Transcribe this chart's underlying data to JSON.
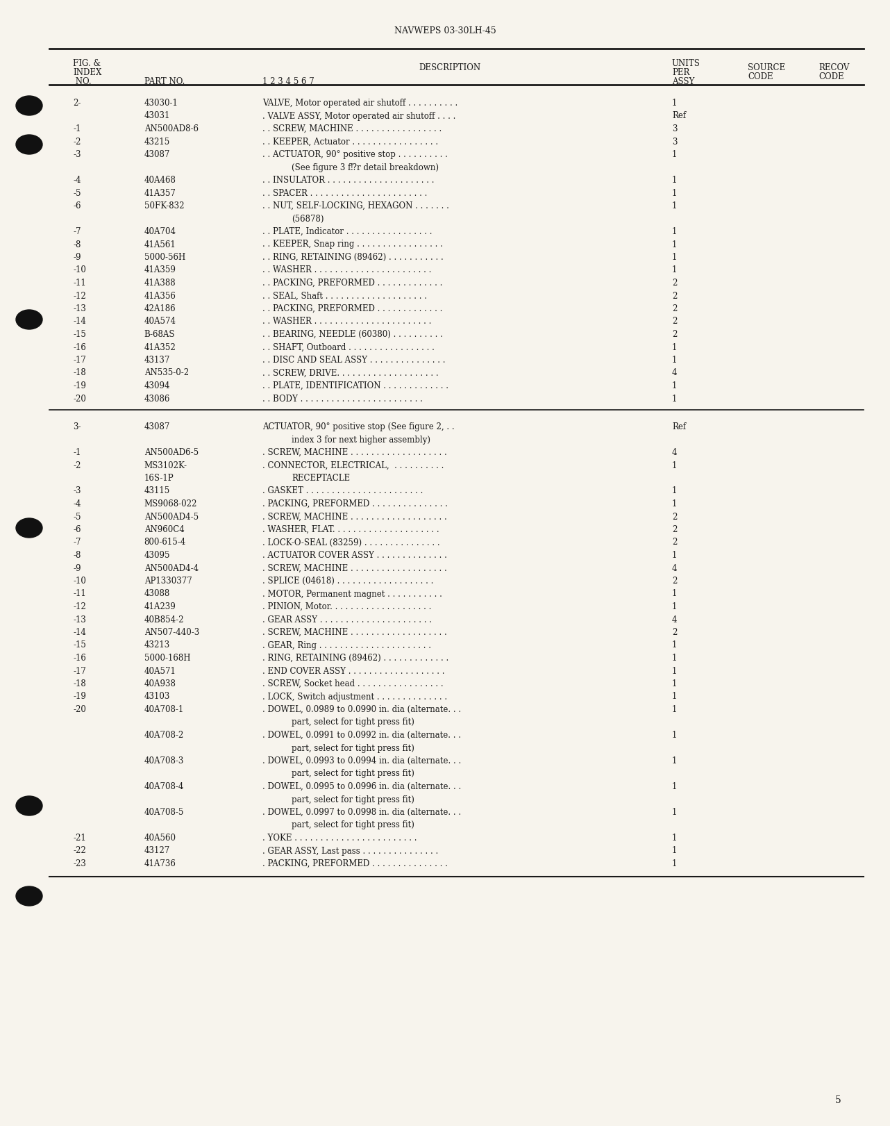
{
  "header_title": "NAVWEPS 03-30LH-45",
  "bg_color": "#f7f4ed",
  "text_color": "#1a1a1a",
  "page_number": "5",
  "col_x": {
    "index": 0.082,
    "part": 0.162,
    "desc": 0.295,
    "units": 0.755,
    "source": 0.84,
    "recov": 0.92
  },
  "section1_rows": [
    {
      "index": "2-",
      "part": "43030-1",
      "desc": "VALVE, Motor operated air shutoff . . . . . . . . . .",
      "units": "1",
      "cont": false
    },
    {
      "index": "",
      "part": "43031",
      "desc": ". VALVE ASSY, Motor operated air shutoff . . . .",
      "units": "Ref",
      "cont": false
    },
    {
      "index": "-1",
      "part": "AN500AD8-6",
      "desc": ". . SCREW, MACHINE . . . . . . . . . . . . . . . . .",
      "units": "3",
      "cont": false
    },
    {
      "index": "-2",
      "part": "43215",
      "desc": ". . KEEPER, Actuator . . . . . . . . . . . . . . . . .",
      "units": "3",
      "cont": false
    },
    {
      "index": "-3",
      "part": "43087",
      "desc": ". . ACTUATOR, 90° positive stop . . . . . . . . . .",
      "units": "1",
      "cont": false
    },
    {
      "index": "",
      "part": "",
      "desc": "(See figure 3 f⁉r detail breakdown)",
      "units": "",
      "cont": true
    },
    {
      "index": "-4",
      "part": "40A468",
      "desc": ". . INSULATOR . . . . . . . . . . . . . . . . . . . . .",
      "units": "1",
      "cont": false
    },
    {
      "index": "-5",
      "part": "41A357",
      "desc": ". . SPACER . . . . . . . . . . . . . . . . . . . . . . .",
      "units": "1",
      "cont": false
    },
    {
      "index": "-6",
      "part": "50FK-832",
      "desc": ". . NUT, SELF-LOCKING, HEXAGON . . . . . . .",
      "units": "1",
      "cont": false
    },
    {
      "index": "",
      "part": "",
      "desc": "(56878)",
      "units": "",
      "cont": true
    },
    {
      "index": "-7",
      "part": "40A704",
      "desc": ". . PLATE, Indicator . . . . . . . . . . . . . . . . .",
      "units": "1",
      "cont": false
    },
    {
      "index": "-8",
      "part": "41A561",
      "desc": ". . KEEPER, Snap ring . . . . . . . . . . . . . . . . .",
      "units": "1",
      "cont": false
    },
    {
      "index": "-9",
      "part": "5000-56H",
      "desc": ". . RING, RETAINING (89462) . . . . . . . . . . .",
      "units": "1",
      "cont": false
    },
    {
      "index": "-10",
      "part": "41A359",
      "desc": ". . WASHER . . . . . . . . . . . . . . . . . . . . . . .",
      "units": "1",
      "cont": false
    },
    {
      "index": "-11",
      "part": "41A388",
      "desc": ". . PACKING, PREFORMED . . . . . . . . . . . . .",
      "units": "2",
      "cont": false
    },
    {
      "index": "-12",
      "part": "41A356",
      "desc": ". . SEAL, Shaft . . . . . . . . . . . . . . . . . . . .",
      "units": "2",
      "cont": false
    },
    {
      "index": "-13",
      "part": "42A186",
      "desc": ". . PACKING, PREFORMED . . . . . . . . . . . . .",
      "units": "2",
      "cont": false
    },
    {
      "index": "-14",
      "part": "40A574",
      "desc": ". . WASHER . . . . . . . . . . . . . . . . . . . . . . .",
      "units": "2",
      "cont": false
    },
    {
      "index": "-15",
      "part": "B-68AS",
      "desc": ". . BEARING, NEEDLE (60380) . . . . . . . . . .",
      "units": "2",
      "cont": false
    },
    {
      "index": "-16",
      "part": "41A352",
      "desc": ". . SHAFT, Outboard . . . . . . . . . . . . . . . . .",
      "units": "1",
      "cont": false
    },
    {
      "index": "-17",
      "part": "43137",
      "desc": ". . DISC AND SEAL ASSY . . . . . . . . . . . . . . .",
      "units": "1",
      "cont": false
    },
    {
      "index": "-18",
      "part": "AN535-0-2",
      "desc": ". . SCREW, DRIVE. . . . . . . . . . . . . . . . . . . .",
      "units": "4",
      "cont": false
    },
    {
      "index": "-19",
      "part": "43094",
      "desc": ". . PLATE, IDENTIFICATION . . . . . . . . . . . . .",
      "units": "1",
      "cont": false
    },
    {
      "index": "-20",
      "part": "43086",
      "desc": ". . BODY . . . . . . . . . . . . . . . . . . . . . . . .",
      "units": "1",
      "cont": false
    }
  ],
  "section2_rows": [
    {
      "index": "3-",
      "part": "43087",
      "desc": "ACTUATOR, 90° positive stop (See figure 2, . .",
      "units": "Ref",
      "cont": false,
      "ref_inline": true
    },
    {
      "index": "",
      "part": "",
      "desc": "index 3 for next higher assembly)",
      "units": "",
      "cont": true
    },
    {
      "index": "-1",
      "part": "AN500AD6-5",
      "desc": ". SCREW, MACHINE . . . . . . . . . . . . . . . . . . .",
      "units": "4",
      "cont": false
    },
    {
      "index": "-2",
      "part": "MS3102K-",
      "desc": ". CONNECTOR, ELECTRICAL,  . . . . . . . . . .",
      "units": "1",
      "cont": false,
      "part2": "16S-1P"
    },
    {
      "index": "",
      "part": "",
      "desc": "RECEPTACLE",
      "units": "",
      "cont": true
    },
    {
      "index": "-3",
      "part": "43115",
      "desc": ". GASKET . . . . . . . . . . . . . . . . . . . . . . .",
      "units": "1",
      "cont": false
    },
    {
      "index": "-4",
      "part": "MS9068-022",
      "desc": ". PACKING, PREFORMED . . . . . . . . . . . . . . .",
      "units": "1",
      "cont": false
    },
    {
      "index": "-5",
      "part": "AN500AD4-5",
      "desc": ". SCREW, MACHINE . . . . . . . . . . . . . . . . . . .",
      "units": "2",
      "cont": false
    },
    {
      "index": "-6",
      "part": "AN960C4",
      "desc": ". WASHER, FLAT. . . . . . . . . . . . . . . . . . . . .",
      "units": "2",
      "cont": false
    },
    {
      "index": "-7",
      "part": "800-615-4",
      "desc": ". LOCK-O-SEAL (83259) . . . . . . . . . . . . . . .",
      "units": "2",
      "cont": false
    },
    {
      "index": "-8",
      "part": "43095",
      "desc": ". ACTUATOR COVER ASSY . . . . . . . . . . . . . .",
      "units": "1",
      "cont": false
    },
    {
      "index": "-9",
      "part": "AN500AD4-4",
      "desc": ". SCREW, MACHINE . . . . . . . . . . . . . . . . . . .",
      "units": "4",
      "cont": false
    },
    {
      "index": "-10",
      "part": "AP1330377",
      "desc": ". SPLICE (04618) . . . . . . . . . . . . . . . . . . .",
      "units": "2",
      "cont": false
    },
    {
      "index": "-11",
      "part": "43088",
      "desc": ". MOTOR, Permanent magnet . . . . . . . . . . .",
      "units": "1",
      "cont": false
    },
    {
      "index": "-12",
      "part": "41A239",
      "desc": ". PINION, Motor. . . . . . . . . . . . . . . . . . . .",
      "units": "1",
      "cont": false
    },
    {
      "index": "-13",
      "part": "40B854-2",
      "desc": ". GEAR ASSY . . . . . . . . . . . . . . . . . . . . . .",
      "units": "4",
      "cont": false
    },
    {
      "index": "-14",
      "part": "AN507-440-3",
      "desc": ". SCREW, MACHINE . . . . . . . . . . . . . . . . . . .",
      "units": "2",
      "cont": false
    },
    {
      "index": "-15",
      "part": "43213",
      "desc": ". GEAR, Ring . . . . . . . . . . . . . . . . . . . . . .",
      "units": "1",
      "cont": false
    },
    {
      "index": "-16",
      "part": "5000-168H",
      "desc": ". RING, RETAINING (89462) . . . . . . . . . . . . .",
      "units": "1",
      "cont": false
    },
    {
      "index": "-17",
      "part": "40A571",
      "desc": ". END COVER ASSY . . . . . . . . . . . . . . . . . . .",
      "units": "1",
      "cont": false
    },
    {
      "index": "-18",
      "part": "40A938",
      "desc": ". SCREW, Socket head . . . . . . . . . . . . . . . . .",
      "units": "1",
      "cont": false
    },
    {
      "index": "-19",
      "part": "43103",
      "desc": ". LOCK, Switch adjustment . . . . . . . . . . . . . .",
      "units": "1",
      "cont": false
    },
    {
      "index": "-20",
      "part": "40A708-1",
      "desc": ". DOWEL, 0.0989 to 0.0990 in. dia (alternate. . .",
      "units": "1",
      "cont": false
    },
    {
      "index": "",
      "part": "",
      "desc": "part, select for tight press fit)",
      "units": "",
      "cont": true
    },
    {
      "index": "",
      "part": "40A708-2",
      "desc": ". DOWEL, 0.0991 to 0.0992 in. dia (alternate. . .",
      "units": "1",
      "cont": false
    },
    {
      "index": "",
      "part": "",
      "desc": "part, select for tight press fit)",
      "units": "",
      "cont": true
    },
    {
      "index": "",
      "part": "40A708-3",
      "desc": ". DOWEL, 0.0993 to 0.0994 in. dia (alternate. . .",
      "units": "1",
      "cont": false
    },
    {
      "index": "",
      "part": "",
      "desc": "part, select for tight press fit)",
      "units": "",
      "cont": true
    },
    {
      "index": "",
      "part": "40A708-4",
      "desc": ". DOWEL, 0.0995 to 0.0996 in. dia (alternate. . .",
      "units": "1",
      "cont": false
    },
    {
      "index": "",
      "part": "",
      "desc": "part, select for tight press fit)",
      "units": "",
      "cont": true
    },
    {
      "index": "",
      "part": "40A708-5",
      "desc": ". DOWEL, 0.0997 to 0.0998 in. dia (alternate. . .",
      "units": "1",
      "cont": false
    },
    {
      "index": "",
      "part": "",
      "desc": "part, select for tight press fit)",
      "units": "",
      "cont": true
    },
    {
      "index": "-21",
      "part": "40A560",
      "desc": ". YOKE . . . . . . . . . . . . . . . . . . . . . . . .",
      "units": "1",
      "cont": false
    },
    {
      "index": "-22",
      "part": "43127",
      "desc": ". GEAR ASSY, Last pass . . . . . . . . . . . . . . .",
      "units": "1",
      "cont": false
    },
    {
      "index": "-23",
      "part": "41A736",
      "desc": ". PACKING, PREFORMED . . . . . . . . . . . . . . .",
      "units": "1",
      "cont": false
    }
  ]
}
